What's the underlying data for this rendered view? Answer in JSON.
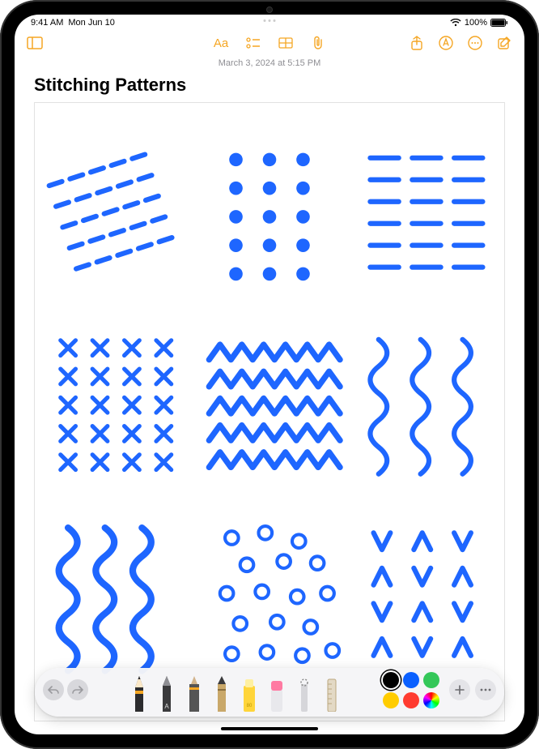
{
  "status": {
    "time": "9:41 AM",
    "date": "Mon Jun 10",
    "battery_pct": "100%"
  },
  "toolbar": {
    "format_label": "Aa"
  },
  "note": {
    "modified": "March 3, 2024 at 5:15 PM",
    "title": "Stitching Patterns"
  },
  "drawing": {
    "stroke_color": "#1e66ff",
    "stroke_width": 6
  },
  "palette": {
    "colors": [
      "#000000",
      "#0a60ff",
      "#34c759",
      "#ffcc00",
      "#ff3b30"
    ],
    "selected_index": 0
  },
  "accent_color": "#f5a623",
  "frame_border": "#e2e2e2"
}
